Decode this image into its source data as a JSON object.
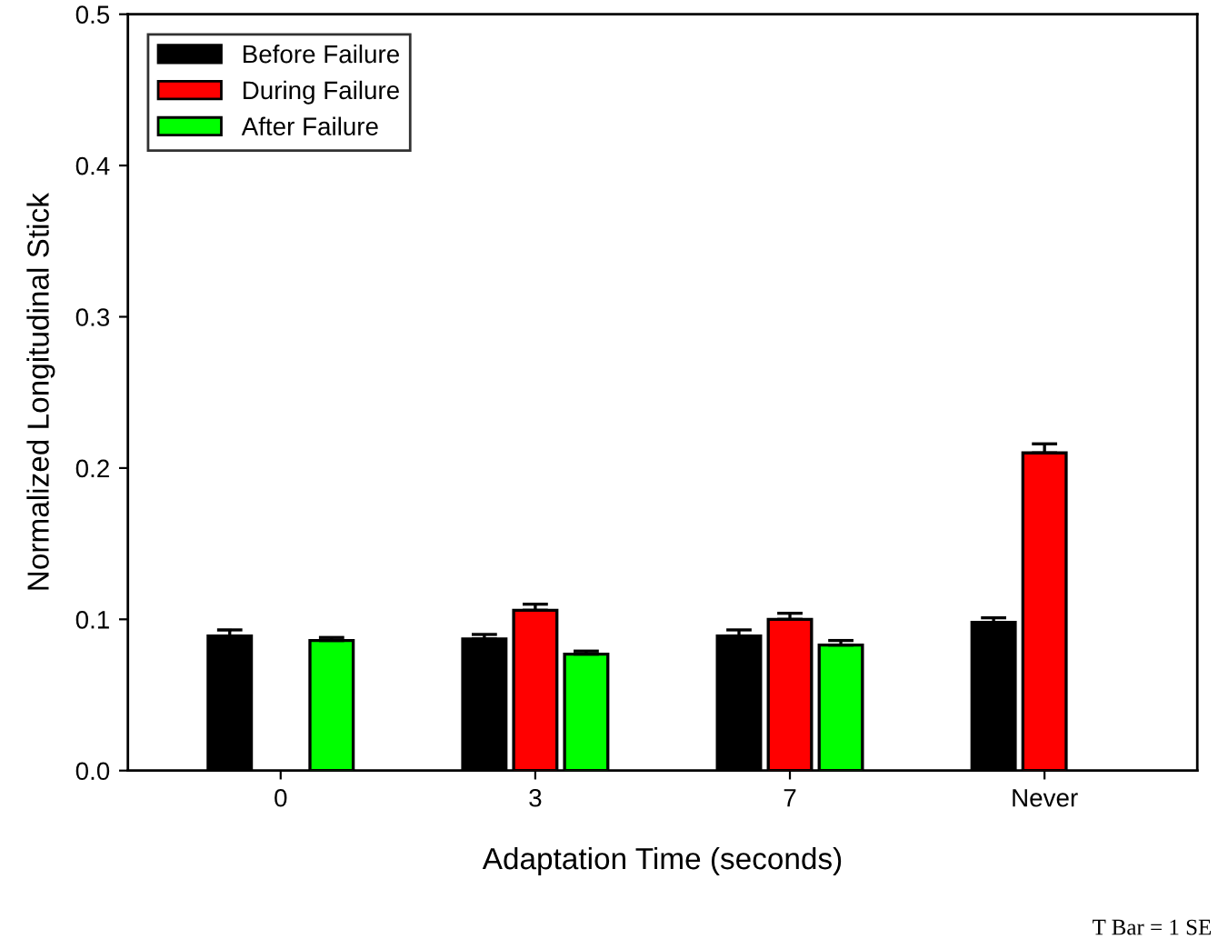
{
  "chart_data": {
    "type": "bar",
    "xlabel": "Adaptation Time (seconds)",
    "ylabel": "Normalized Longitudinal Stick",
    "categories": [
      "0",
      "3",
      "7",
      "Never"
    ],
    "series": [
      {
        "name": "Before Failure",
        "color": "#000000",
        "values": [
          0.089,
          0.087,
          0.089,
          0.098
        ],
        "errors": [
          [
            0.089,
            0.093
          ],
          [
            0.087,
            0.09
          ],
          [
            0.089,
            0.093
          ],
          [
            0.098,
            0.101
          ]
        ]
      },
      {
        "name": "During Failure",
        "color": "#ff0000",
        "values": [
          null,
          0.106,
          0.1,
          0.21
        ],
        "errors": [
          null,
          [
            0.106,
            0.11
          ],
          [
            0.1,
            0.104
          ],
          [
            0.21,
            0.216
          ]
        ]
      },
      {
        "name": "After Failure",
        "color": "#00ff00",
        "values": [
          0.086,
          0.077,
          0.083,
          null
        ],
        "errors": [
          [
            0.086,
            0.088
          ],
          [
            0.077,
            0.079
          ],
          [
            0.083,
            0.086
          ],
          null
        ]
      }
    ],
    "ylim": [
      0,
      0.5
    ],
    "yticks": [
      {
        "value": 0,
        "label": "0.0"
      },
      {
        "value": 0.1,
        "label": "0.1"
      },
      {
        "value": 0.2,
        "label": "0.2"
      },
      {
        "value": 0.3,
        "label": "0.3"
      },
      {
        "value": 0.4,
        "label": "0.4"
      },
      {
        "value": 0.5,
        "label": "0.5"
      }
    ],
    "legend": "top left",
    "grid": false,
    "annotations": [
      "T Bar = 1 SE"
    ]
  }
}
